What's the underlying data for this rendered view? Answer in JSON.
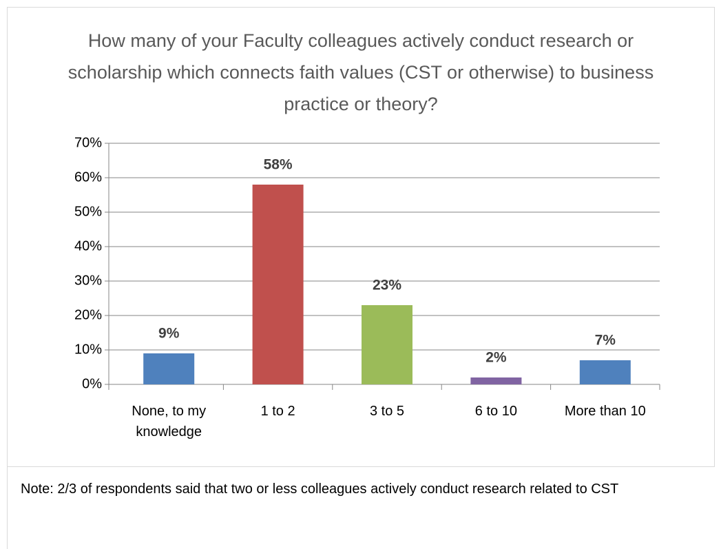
{
  "chart_data": {
    "type": "bar",
    "title": "How many of your Faculty colleagues actively conduct research or scholarship which connects faith values (CST or otherwise) to business practice or theory?",
    "categories": [
      "None, to my knowledge",
      "1 to 2",
      "3 to 5",
      "6 to 10",
      "More than 10"
    ],
    "values": [
      9,
      58,
      23,
      2,
      7
    ],
    "value_labels": [
      "9%",
      "58%",
      "23%",
      "2%",
      "7%"
    ],
    "colors": [
      "#4f81bd",
      "#c0504d",
      "#9bbb59",
      "#8064a2",
      "#4f81bd"
    ],
    "ylim": [
      0,
      70
    ],
    "yticks": [
      {
        "value": 0,
        "label": "0%"
      },
      {
        "value": 10,
        "label": "10%"
      },
      {
        "value": 20,
        "label": "20%"
      },
      {
        "value": 30,
        "label": "30%"
      },
      {
        "value": 40,
        "label": "40%"
      },
      {
        "value": 50,
        "label": "50%"
      },
      {
        "value": 60,
        "label": "60%"
      },
      {
        "value": 70,
        "label": "70%"
      }
    ],
    "grid": true,
    "note": "Note:  2/3 of respondents said that two or less colleagues actively conduct research related to CST"
  }
}
